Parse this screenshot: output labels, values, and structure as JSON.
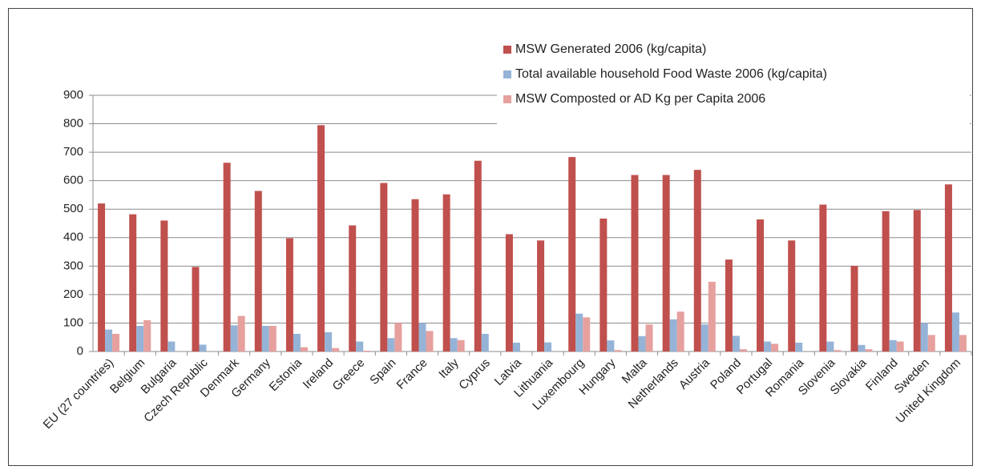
{
  "chart_data": {
    "type": "bar",
    "categories": [
      "EU (27 countries)",
      "Belgium",
      "Bulgaria",
      "Czech Republic",
      "Denmark",
      "Germany",
      "Estonia",
      "Ireland",
      "Greece",
      "Spain",
      "France",
      "Italy",
      "Cyprus",
      "Latvia",
      "Lithuania",
      "Luxembourg",
      "Hungary",
      "Malta",
      "Netherlands",
      "Austria",
      "Poland",
      "Portugal",
      "Romania",
      "Slovenia",
      "Slovakia",
      "Finland",
      "Sweden",
      "United Kingdom"
    ],
    "series": [
      {
        "name": "MSW Generated  2006 (kg/capita)",
        "color": "#c0504d",
        "values": [
          520,
          482,
          460,
          297,
          663,
          564,
          398,
          795,
          443,
          592,
          535,
          552,
          670,
          412,
          390,
          683,
          467,
          620,
          620,
          638,
          323,
          464,
          390,
          516,
          301,
          493,
          497,
          587
        ]
      },
      {
        "name": "Total available household Food Waste 2006 (kg/capita)",
        "color": "#95b3d7",
        "values": [
          77,
          90,
          35,
          24,
          92,
          90,
          62,
          68,
          35,
          47,
          100,
          47,
          62,
          31,
          32,
          133,
          39,
          54,
          113,
          95,
          55,
          35,
          31,
          35,
          23,
          40,
          100,
          137
        ]
      },
      {
        "name": "MSW Composted or AD Kg per Capita 2006",
        "color": "#e6a09e",
        "values": [
          62,
          110,
          0,
          0,
          125,
          90,
          15,
          12,
          3,
          100,
          72,
          40,
          0,
          0,
          0,
          120,
          5,
          95,
          140,
          245,
          8,
          27,
          0,
          5,
          8,
          35,
          58,
          58
        ]
      }
    ],
    "ylim": [
      0,
      900
    ],
    "yticks": [
      0,
      100,
      200,
      300,
      400,
      500,
      600,
      700,
      800,
      900
    ],
    "grid": true
  }
}
